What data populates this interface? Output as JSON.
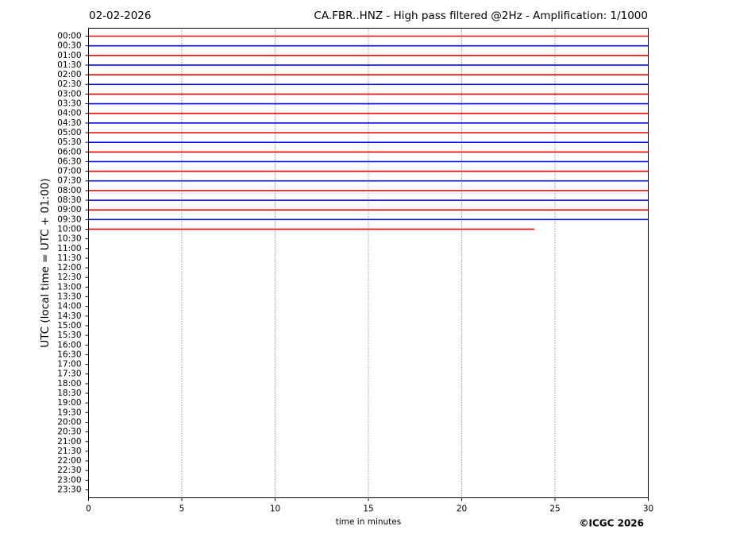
{
  "chart_data": {
    "type": "helicorder",
    "date": "02-02-2026",
    "title": "CA.FBR..HNZ - High pass filtered @2Hz - Amplification: 1/1000",
    "x_label": "time in minutes",
    "y_label": "UTC (local time = UTC + 01:00)",
    "credit": "©ICGC 2026",
    "xlim": [
      0,
      30
    ],
    "xticks": [
      0,
      5,
      10,
      15,
      20,
      25,
      30
    ],
    "grid": true,
    "colors": [
      "#ff0000",
      "#0000ff"
    ],
    "categories": [
      "00:00",
      "00:30",
      "01:00",
      "01:30",
      "02:00",
      "02:30",
      "03:00",
      "03:30",
      "04:00",
      "04:30",
      "05:00",
      "05:30",
      "06:00",
      "06:30",
      "07:00",
      "07:30",
      "08:00",
      "08:30",
      "09:00",
      "09:30",
      "10:00",
      "10:30",
      "11:00",
      "11:30",
      "12:00",
      "12:30",
      "13:00",
      "13:30",
      "14:00",
      "14:30",
      "15:00",
      "15:30",
      "16:00",
      "16:30",
      "17:00",
      "17:30",
      "18:00",
      "18:30",
      "19:00",
      "19:30",
      "20:00",
      "20:30",
      "21:00",
      "21:30",
      "22:00",
      "22:30",
      "23:00",
      "23:30"
    ],
    "trace_end": [
      30,
      30,
      30,
      30,
      30,
      30,
      30,
      30,
      30,
      30,
      30,
      30,
      30,
      30,
      30,
      30,
      30,
      30,
      30,
      30,
      23.9,
      null,
      null,
      null,
      null,
      null,
      null,
      null,
      null,
      null,
      null,
      null,
      null,
      null,
      null,
      null,
      null,
      null,
      null,
      null,
      null,
      null,
      null,
      null,
      null,
      null,
      null,
      null
    ]
  }
}
